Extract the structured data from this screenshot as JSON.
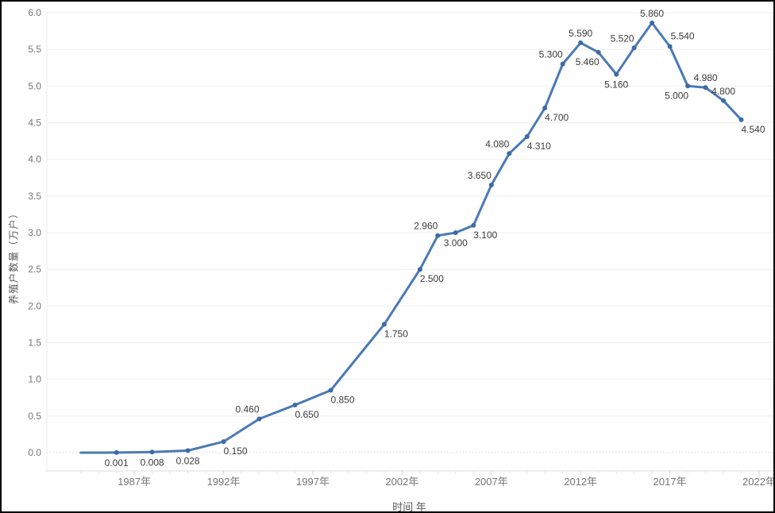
{
  "chart_data": {
    "type": "line",
    "title": "",
    "xlabel": "时间 年",
    "ylabel": "养殖户数量（万户）",
    "ylim": [
      0,
      6
    ],
    "xlim": [
      1982.1,
      2022.8
    ],
    "grid": "horizontal-only",
    "legend": "none",
    "y_ticks": [
      0.0,
      0.5,
      1.0,
      1.5,
      2.0,
      2.5,
      3.0,
      3.5,
      4.0,
      4.5,
      5.0,
      5.5,
      6.0
    ],
    "x_ticks": [
      {
        "year": 1987,
        "label": "1987年"
      },
      {
        "year": 1992,
        "label": "1992年"
      },
      {
        "year": 1997,
        "label": "1997年"
      },
      {
        "year": 2002,
        "label": "2002年"
      },
      {
        "year": 2007,
        "label": "2007年"
      },
      {
        "year": 2012,
        "label": "2012年"
      },
      {
        "year": 2017,
        "label": "2017年"
      },
      {
        "year": 2022,
        "label": "2022年"
      }
    ],
    "minor_tick_years": {
      "start": 1984,
      "end": 2022,
      "step": 1
    },
    "series": [
      {
        "points": [
          {
            "year": 1984,
            "value": 0.0,
            "label": "",
            "label_pos": "none"
          },
          {
            "year": 1986,
            "value": 0.001,
            "label": "0.001",
            "label_pos": "below"
          },
          {
            "year": 1988,
            "value": 0.008,
            "label": "0.008",
            "label_pos": "below"
          },
          {
            "year": 1990,
            "value": 0.028,
            "label": "0.028",
            "label_pos": "below"
          },
          {
            "year": 1992,
            "value": 0.15,
            "label": "0.150",
            "label_pos": "below-right"
          },
          {
            "year": 1994,
            "value": 0.46,
            "label": "0.460",
            "label_pos": "above-left"
          },
          {
            "year": 1996,
            "value": 0.65,
            "label": "0.650",
            "label_pos": "below-right"
          },
          {
            "year": 1998,
            "value": 0.85,
            "label": "0.850",
            "label_pos": "below-right"
          },
          {
            "year": 2001,
            "value": 1.75,
            "label": "1.750",
            "label_pos": "below-right"
          },
          {
            "year": 2003,
            "value": 2.5,
            "label": "2.500",
            "label_pos": "below-right"
          },
          {
            "year": 2004,
            "value": 2.96,
            "label": "2.960",
            "label_pos": "above-left"
          },
          {
            "year": 2005,
            "value": 3.0,
            "label": "3.000",
            "label_pos": "below"
          },
          {
            "year": 2006,
            "value": 3.1,
            "label": "3.100",
            "label_pos": "below-right"
          },
          {
            "year": 2007,
            "value": 3.65,
            "label": "3.650",
            "label_pos": "above-left"
          },
          {
            "year": 2008,
            "value": 4.08,
            "label": "4.080",
            "label_pos": "above-left"
          },
          {
            "year": 2009,
            "value": 4.31,
            "label": "4.310",
            "label_pos": "below-right"
          },
          {
            "year": 2010,
            "value": 4.7,
            "label": "4.700",
            "label_pos": "below-right"
          },
          {
            "year": 2011,
            "value": 5.3,
            "label": "5.300",
            "label_pos": "above-left"
          },
          {
            "year": 2012,
            "value": 5.59,
            "label": "5.590",
            "label_pos": "above"
          },
          {
            "year": 2013,
            "value": 5.46,
            "label": "5.460",
            "label_pos": "below-left"
          },
          {
            "year": 2014,
            "value": 5.16,
            "label": "5.160",
            "label_pos": "below"
          },
          {
            "year": 2015,
            "value": 5.52,
            "label": "5.520",
            "label_pos": "above-left"
          },
          {
            "year": 2016,
            "value": 5.86,
            "label": "5.860",
            "label_pos": "above"
          },
          {
            "year": 2017,
            "value": 5.54,
            "label": "5.540",
            "label_pos": "above-right"
          },
          {
            "year": 2018,
            "value": 5.0,
            "label": "5.000",
            "label_pos": "below-left"
          },
          {
            "year": 2019,
            "value": 4.98,
            "label": "4.980",
            "label_pos": "above"
          },
          {
            "year": 2020,
            "value": 4.8,
            "label": "4.800",
            "label_pos": "above"
          },
          {
            "year": 2021,
            "value": 4.54,
            "label": "4.540",
            "label_pos": "below-right"
          }
        ]
      }
    ]
  },
  "colors": {
    "line": "#4a7ab5",
    "marker": "#3c6ba6",
    "data_label": "#3b3b3b",
    "tick_label": "#757575",
    "axis_title": "#595959",
    "gridline": "#efefef",
    "zero_gridline": "#d4d4d4",
    "plot_border": "#ececec",
    "axis_line": "#dcdcdc",
    "minor_tick": "#e2e2e2",
    "major_tick": "#cfcfcf",
    "frame_border": "#000000",
    "background": "#ffffff"
  }
}
